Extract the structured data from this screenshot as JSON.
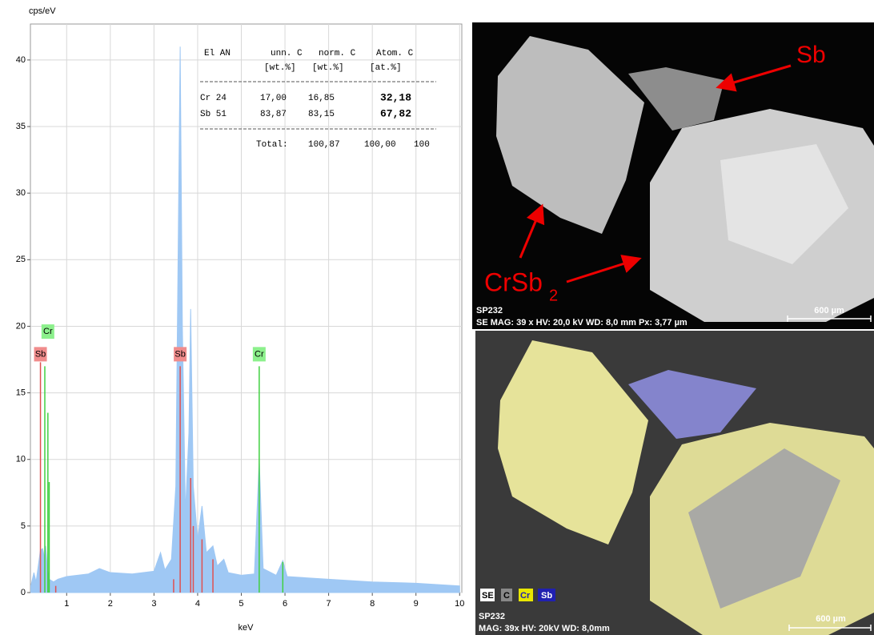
{
  "chart_data": {
    "type": "area",
    "y_label": "cps/eV",
    "x_label": "keV",
    "color": "#9fc8f4",
    "x": [
      0.18,
      0.25,
      0.3,
      0.35,
      0.4,
      0.45,
      0.5,
      0.52,
      0.55,
      0.6,
      0.7,
      0.8,
      1.0,
      1.5,
      1.75,
      2.0,
      2.5,
      3.0,
      3.15,
      3.25,
      3.4,
      3.5,
      3.6,
      3.65,
      3.72,
      3.8,
      3.84,
      3.9,
      4.0,
      4.1,
      4.2,
      4.35,
      4.45,
      4.6,
      4.7,
      5.0,
      5.3,
      5.41,
      5.5,
      5.8,
      5.95,
      6.05,
      7,
      8,
      9,
      10
    ],
    "values": [
      0.5,
      1.5,
      0.8,
      2,
      3.2,
      3.3,
      2.5,
      3.5,
      2.2,
      1,
      0.8,
      1.0,
      1.2,
      1.4,
      1.8,
      1.5,
      1.4,
      1.6,
      3.0,
      1.7,
      2.5,
      8,
      41,
      20,
      6,
      12,
      21.3,
      8,
      4,
      6.5,
      3,
      3.5,
      2,
      2.5,
      1.5,
      1.3,
      1.4,
      10,
      1.8,
      1.3,
      2.4,
      1.2,
      1.0,
      0.8,
      0.7,
      0.5
    ],
    "xlim": [
      0.17,
      10.05
    ],
    "ylim": [
      0,
      42.7
    ],
    "xticks": [
      1,
      2,
      3,
      4,
      5,
      6,
      7,
      8,
      9,
      10
    ],
    "yticks": [
      0,
      5,
      10,
      15,
      20,
      25,
      30,
      35,
      40
    ],
    "grid": true,
    "element_lines": [
      {
        "name": "Sb",
        "color": "#e05050",
        "x": [
          0.4,
          0.75,
          3.45,
          3.6,
          3.84,
          3.9,
          4.1,
          4.35
        ],
        "values": [
          17.3,
          0.5,
          1,
          17,
          8.6,
          5,
          4,
          2.5
        ]
      },
      {
        "name": "Cr",
        "color": "#40d040",
        "x": [
          0.5,
          0.57,
          0.6,
          5.41,
          5.95
        ],
        "values": [
          17,
          13.5,
          8.3,
          17,
          2.3
        ]
      }
    ],
    "element_labels": [
      {
        "text": "Cr",
        "x": 0.57,
        "y": 19.6,
        "color": "#8cf08c"
      },
      {
        "text": "Sb",
        "x": 0.4,
        "y": 17.9,
        "color": "#f08c8c"
      },
      {
        "text": "Sb",
        "x": 3.6,
        "y": 17.9,
        "color": "#f08c8c"
      },
      {
        "text": "Cr",
        "x": 5.41,
        "y": 17.9,
        "color": "#8cf08c"
      }
    ],
    "table": {
      "header": [
        "El AN",
        "unn. C",
        "norm. C",
        "Atom. C"
      ],
      "units": [
        "[wt.%]",
        "[wt.%]",
        "[at.%]"
      ],
      "rows": [
        [
          "Cr 24",
          "17,00",
          "16,85",
          "32,18"
        ],
        [
          "Sb 51",
          "83,87",
          "83,15",
          "67,82"
        ]
      ],
      "total": [
        "Total:",
        "100,87",
        "100,00",
        "100"
      ]
    }
  },
  "images": [
    {
      "label_top": "Sb",
      "label_main": "CrSb",
      "label_sub": "2",
      "sample": "SP232",
      "info": "SE  MAG: 39 x   HV: 20,0 kV   WD: 8,0 mm   Px: 3,77 µm",
      "scale": "600 µm"
    },
    {
      "legend": [
        "SE",
        "C",
        "Cr",
        "Sb"
      ],
      "sample": "SP232",
      "info": "MAG: 39x  HV: 20kV  WD: 8,0mm",
      "scale": "600 µm"
    }
  ]
}
